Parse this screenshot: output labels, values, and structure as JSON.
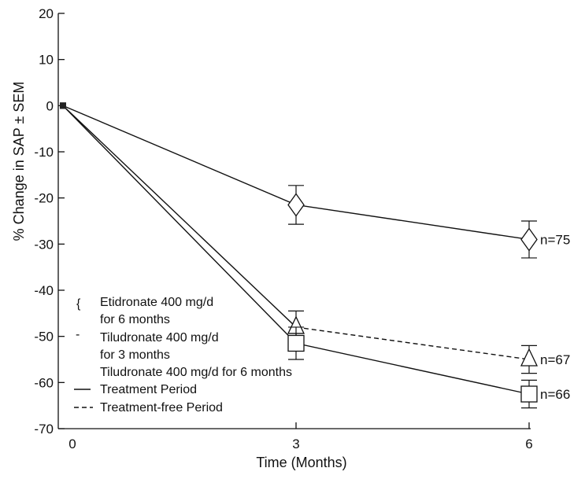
{
  "chart_data": {
    "type": "line",
    "xlabel": "Time (Months)",
    "ylabel": "% Change in SAP ± SEM",
    "x_ticks": [
      0,
      3,
      6
    ],
    "y_ticks": [
      20,
      10,
      0,
      -10,
      -20,
      -30,
      -40,
      -50,
      -60,
      -70
    ],
    "xlim": [
      0,
      6
    ],
    "ylim": [
      -70,
      20
    ],
    "series": [
      {
        "name": "Etidronate 400 mg/d for 6 months",
        "marker": "diamond",
        "x": [
          0,
          3,
          6
        ],
        "y": [
          0,
          -21.5,
          -29
        ],
        "err": [
          0,
          4.2,
          4
        ],
        "end_label": "n=75",
        "segments": [
          "solid",
          "solid"
        ]
      },
      {
        "name": "Tiludronate 400 mg/d for 3 months",
        "marker": "triangle",
        "x": [
          0,
          3,
          6
        ],
        "y": [
          0,
          -48,
          -55
        ],
        "err": [
          0,
          3.5,
          3
        ],
        "end_label": "n=67",
        "segments": [
          "solid",
          "dashed"
        ]
      },
      {
        "name": "Tiludronate 400 mg/d for 6 months",
        "marker": "square",
        "x": [
          0,
          3,
          6
        ],
        "y": [
          0,
          -51.5,
          -62.5
        ],
        "err": [
          0,
          3.5,
          3
        ],
        "end_label": "n=66",
        "segments": [
          "solid",
          "solid"
        ]
      }
    ],
    "legend": {
      "position": "bottom-left",
      "entries": [
        {
          "symbol": "{",
          "text": [
            "Etidronate 400 mg/d",
            "for 6 months"
          ]
        },
        {
          "symbol": "-",
          "text": [
            "Tiludronate 400 mg/d",
            "for 3 months"
          ]
        },
        {
          "symbol": "",
          "text": [
            "Tiludronate 400 mg/d for 6 months"
          ]
        },
        {
          "symbol": "solid-line",
          "text": [
            "Treatment Period"
          ]
        },
        {
          "symbol": "dashed-line",
          "text": [
            "Treatment-free Period"
          ]
        }
      ]
    },
    "grid": false
  }
}
